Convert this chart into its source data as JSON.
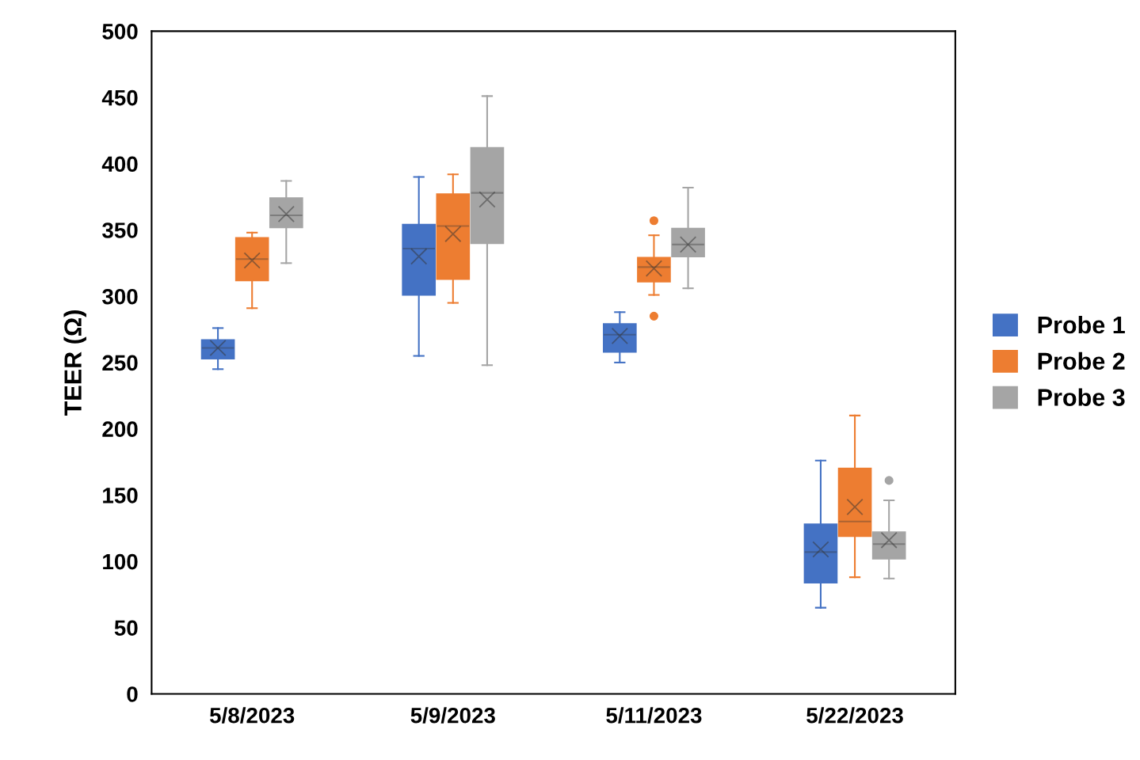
{
  "chart_data": {
    "type": "box",
    "ylabel": "TEER (Ω)",
    "categories": [
      "5/8/2023",
      "5/9/2023",
      "5/11/2023",
      "5/22/2023"
    ],
    "ylim": [
      0,
      500
    ],
    "yticks": [
      0,
      50,
      100,
      150,
      200,
      250,
      300,
      350,
      400,
      450,
      500
    ],
    "grid": false,
    "legend": "right",
    "series": [
      {
        "name": "Probe 1",
        "color": "#4472c4",
        "boxes": [
          {
            "low": 245,
            "q1": 253,
            "median": 261,
            "q3": 267,
            "high": 276,
            "mean": 261
          },
          {
            "low": 255,
            "q1": 301,
            "median": 336,
            "q3": 354,
            "high": 390,
            "mean": 330
          },
          {
            "low": 250,
            "q1": 258,
            "median": 271,
            "q3": 279,
            "high": 288,
            "mean": 270
          },
          {
            "low": 65,
            "q1": 84,
            "median": 107,
            "q3": 128,
            "high": 176,
            "mean": 109
          }
        ]
      },
      {
        "name": "Probe 2",
        "color": "#ed7d31",
        "boxes": [
          {
            "low": 291,
            "q1": 312,
            "median": 328,
            "q3": 344,
            "high": 348,
            "mean": 327
          },
          {
            "low": 295,
            "q1": 313,
            "median": 353,
            "q3": 377,
            "high": 392,
            "mean": 347
          },
          {
            "low": 301,
            "q1": 311,
            "median": 322,
            "q3": 329,
            "high": 346,
            "mean": 321,
            "outliers": [
              357,
              285
            ]
          },
          {
            "low": 88,
            "q1": 119,
            "median": 130,
            "q3": 170,
            "high": 210,
            "mean": 141
          }
        ]
      },
      {
        "name": "Probe 3",
        "color": "#a5a5a5",
        "boxes": [
          {
            "low": 325,
            "q1": 352,
            "median": 361,
            "q3": 374,
            "high": 387,
            "mean": 362
          },
          {
            "low": 248,
            "q1": 340,
            "median": 378,
            "q3": 412,
            "high": 451,
            "mean": 373
          },
          {
            "low": 306,
            "q1": 330,
            "median": 339,
            "q3": 351,
            "high": 382,
            "mean": 339
          },
          {
            "low": 87,
            "q1": 102,
            "median": 113,
            "q3": 122,
            "high": 146,
            "mean": 116,
            "outliers": [
              161
            ]
          }
        ]
      }
    ]
  }
}
